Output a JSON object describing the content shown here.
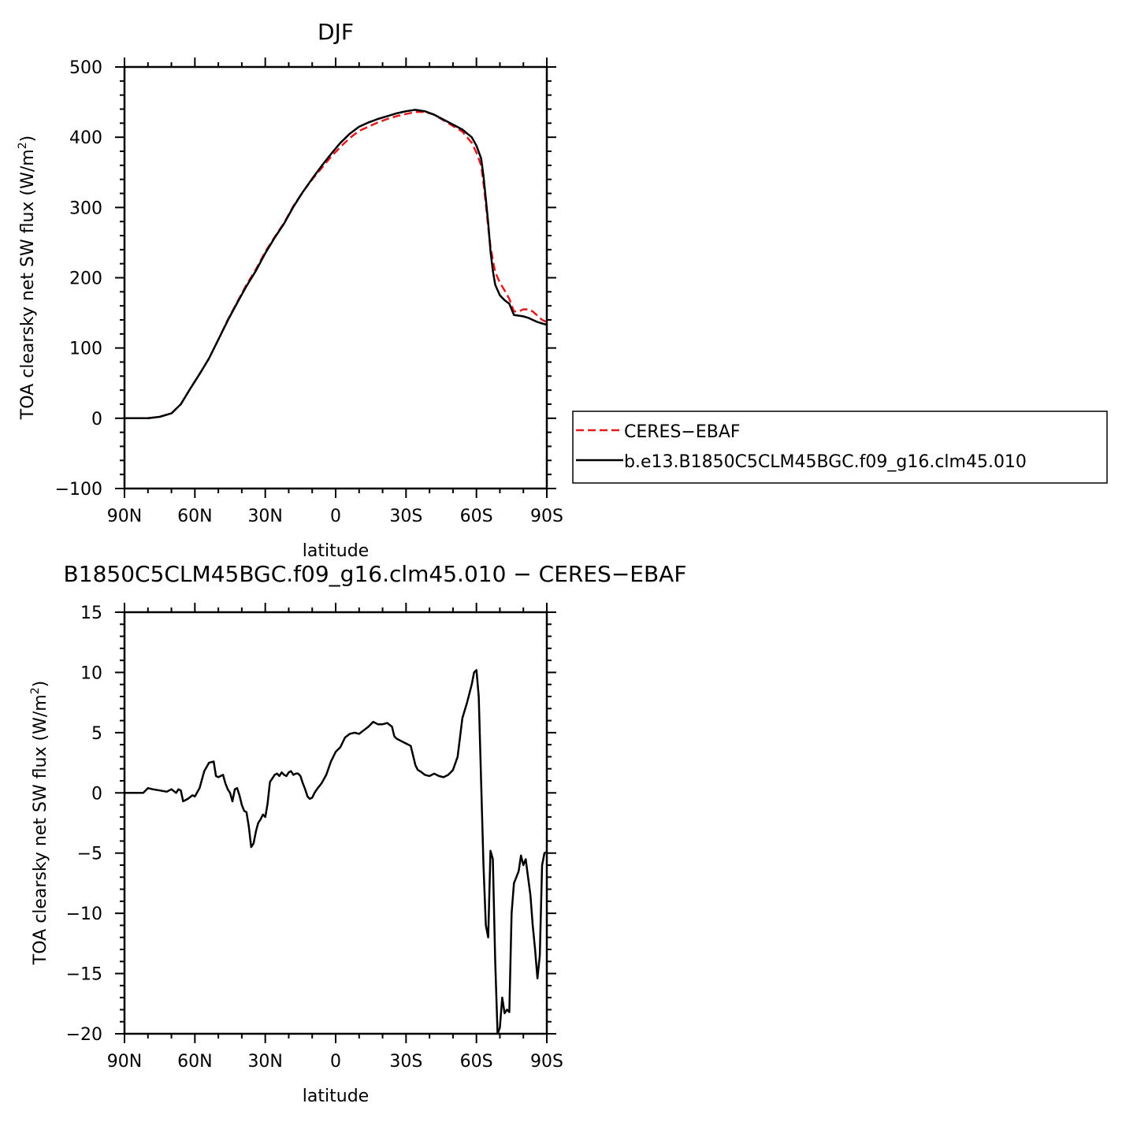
{
  "colors": {
    "ceres": "#e41a1c",
    "model": "#000000",
    "axis": "#000000"
  },
  "chart_data": [
    {
      "type": "line",
      "title": "DJF",
      "xlabel": "latitude",
      "ylabel": "TOA clearsky net SW flux (W/m",
      "ylabel_sup": "2",
      "ylabel_close": ")",
      "xlim": [
        90,
        -90
      ],
      "ylim": [
        -100,
        500
      ],
      "xticks": [
        90,
        60,
        30,
        0,
        -30,
        -60,
        -90
      ],
      "xtick_labels": [
        "90N",
        "60N",
        "30N",
        "0",
        "30S",
        "60S",
        "90S"
      ],
      "yticks": [
        -100,
        0,
        100,
        200,
        300,
        400,
        500
      ],
      "ytick_labels": [
        "−100",
        "0",
        "100",
        "200",
        "300",
        "400",
        "500"
      ],
      "legend": {
        "placement": "right",
        "entries": [
          "CERES−EBAF",
          "b.e13.B1850C5CLM45BGC.f09_g16.clm45.010"
        ]
      },
      "series": [
        {
          "name": "CERES−EBAF",
          "style": "dashed",
          "x": [
            90,
            85,
            80,
            75,
            70,
            66,
            62,
            58,
            54,
            50,
            46,
            42,
            38,
            34,
            30,
            26,
            22,
            18,
            14,
            10,
            6,
            2,
            -2,
            -6,
            -10,
            -14,
            -18,
            -22,
            -26,
            -30,
            -34,
            -38,
            -42,
            -46,
            -50,
            -54,
            -58,
            -60,
            -62,
            -63,
            -64,
            -65,
            -66,
            -67,
            -68,
            -70,
            -72,
            -74,
            -76,
            -78,
            -80,
            -82,
            -84,
            -86,
            -88,
            -90
          ],
          "y": [
            0,
            0,
            0,
            2,
            7,
            20,
            42,
            63,
            85,
            112,
            140,
            165,
            190,
            212,
            237,
            258,
            278,
            302,
            322,
            340,
            356,
            372,
            386,
            399,
            409,
            415,
            421,
            426,
            430,
            433,
            436,
            436,
            432,
            424,
            416,
            408,
            392,
            378,
            360,
            335,
            305,
            272,
            245,
            225,
            208,
            193,
            182,
            170,
            152,
            152,
            155,
            155,
            152,
            146,
            140,
            137
          ]
        },
        {
          "name": "b.e13.B1850C5CLM45BGC.f09_g16.clm45.010",
          "style": "solid",
          "x": [
            90,
            85,
            80,
            75,
            70,
            66,
            62,
            58,
            54,
            50,
            46,
            42,
            38,
            34,
            30,
            26,
            22,
            18,
            14,
            10,
            6,
            2,
            -2,
            -6,
            -10,
            -14,
            -18,
            -22,
            -26,
            -30,
            -34,
            -38,
            -42,
            -46,
            -50,
            -54,
            -58,
            -60,
            -62,
            -63,
            -64,
            -65,
            -66,
            -67,
            -68,
            -70,
            -72,
            -74,
            -76,
            -78,
            -80,
            -82,
            -84,
            -86,
            -88,
            -90
          ],
          "y": [
            0,
            0,
            0,
            2,
            7,
            20,
            42,
            63,
            85,
            112,
            139,
            164,
            188,
            210,
            235,
            257,
            277,
            301,
            322,
            341,
            359,
            376,
            392,
            405,
            415,
            421,
            426,
            430,
            434,
            437,
            439,
            437,
            432,
            425,
            418,
            411,
            400,
            388,
            370,
            345,
            312,
            278,
            238,
            210,
            190,
            175,
            168,
            163,
            147,
            146,
            145,
            143,
            140,
            137,
            135,
            133
          ]
        }
      ]
    },
    {
      "type": "line",
      "title": "B1850C5CLM45BGC.f09_g16.clm45.010 − CERES−EBAF",
      "xlabel": "latitude",
      "ylabel": "TOA clearsky net SW flux (W/m",
      "ylabel_sup": "2",
      "ylabel_close": ")",
      "xlim": [
        90,
        -90
      ],
      "ylim": [
        -20,
        15
      ],
      "xticks": [
        90,
        60,
        30,
        0,
        -30,
        -60,
        -90
      ],
      "xtick_labels": [
        "90N",
        "60N",
        "30N",
        "0",
        "30S",
        "60S",
        "90S"
      ],
      "yticks": [
        -20,
        -15,
        -10,
        -5,
        0,
        5,
        10,
        15
      ],
      "ytick_labels": [
        "−20",
        "−15",
        "−10",
        "−5",
        "0",
        "5",
        "10",
        "15"
      ],
      "series": [
        {
          "style": "solid",
          "x": [
            90,
            82,
            80,
            78,
            75,
            72,
            70,
            68,
            67,
            66,
            65,
            63,
            61,
            60,
            58,
            56,
            54,
            52,
            51,
            50,
            49,
            48,
            47,
            46,
            45,
            44,
            43,
            42,
            41,
            40,
            39,
            38,
            37,
            36,
            35,
            34,
            33,
            32,
            31,
            30,
            29,
            28,
            26,
            25,
            24,
            23,
            22,
            21,
            20,
            19,
            18,
            17,
            16,
            15,
            14,
            13,
            12,
            11,
            10,
            9,
            8,
            6,
            4,
            2,
            1,
            0,
            -2,
            -4,
            -6,
            -8,
            -10,
            -12,
            -14,
            -16,
            -18,
            -20,
            -22,
            -24,
            -25,
            -26,
            -28,
            -30,
            -32,
            -34,
            -35,
            -36,
            -38,
            -40,
            -42,
            -44,
            -46,
            -48,
            -50,
            -52,
            -53,
            -54,
            -56,
            -58,
            -59,
            -60,
            -61,
            -62,
            -63,
            -64,
            -65,
            -66,
            -67,
            -68,
            -69,
            -70,
            -71,
            -72,
            -73,
            -74,
            -75,
            -76,
            -77,
            -78,
            -79,
            -80,
            -81,
            -82,
            -83,
            -84,
            -85,
            -86,
            -87,
            -88,
            -89,
            -90
          ],
          "y": [
            0,
            0,
            0.4,
            0.3,
            0.2,
            0.1,
            0.3,
            0,
            0.3,
            0.2,
            -0.7,
            -0.5,
            -0.2,
            -0.3,
            0.4,
            1.8,
            2.5,
            2.6,
            1.4,
            1.3,
            1.4,
            1.5,
            0.8,
            0.3,
            0,
            -0.7,
            0.3,
            0.4,
            -0.2,
            -1.0,
            -1.5,
            -1.6,
            -2.8,
            -4.5,
            -4.2,
            -3.2,
            -2.5,
            -2.2,
            -1.8,
            -2.0,
            -0.9,
            0.9,
            1.5,
            1.6,
            1.4,
            1.7,
            1.5,
            1.4,
            1.7,
            1.8,
            1.5,
            1.6,
            1.6,
            1.4,
            0.8,
            0.3,
            -0.3,
            -0.5,
            -0.4,
            0,
            0.3,
            0.8,
            1.5,
            2.6,
            3.0,
            3.4,
            3.8,
            4.6,
            4.9,
            5.0,
            4.9,
            5.2,
            5.5,
            5.9,
            5.7,
            5.7,
            5.8,
            5.5,
            4.7,
            4.5,
            4.3,
            4.1,
            3.9,
            2.3,
            1.9,
            1.8,
            1.5,
            1.4,
            1.6,
            1.4,
            1.3,
            1.5,
            1.9,
            3.0,
            4.6,
            6.2,
            7.5,
            9.0,
            10.0,
            10.2,
            8.0,
            1.0,
            -6.0,
            -11.0,
            -12.0,
            -4.8,
            -5.5,
            -14.0,
            -20.0,
            -19.5,
            -17.0,
            -18.3,
            -18.0,
            -18.2,
            -10.0,
            -7.5,
            -7.0,
            -6.5,
            -5.2,
            -6.0,
            -5.5,
            -7.0,
            -8.5,
            -11.0,
            -13.0,
            -15.4,
            -13.5,
            -6.0,
            -5.0,
            -4.9
          ]
        }
      ]
    }
  ]
}
